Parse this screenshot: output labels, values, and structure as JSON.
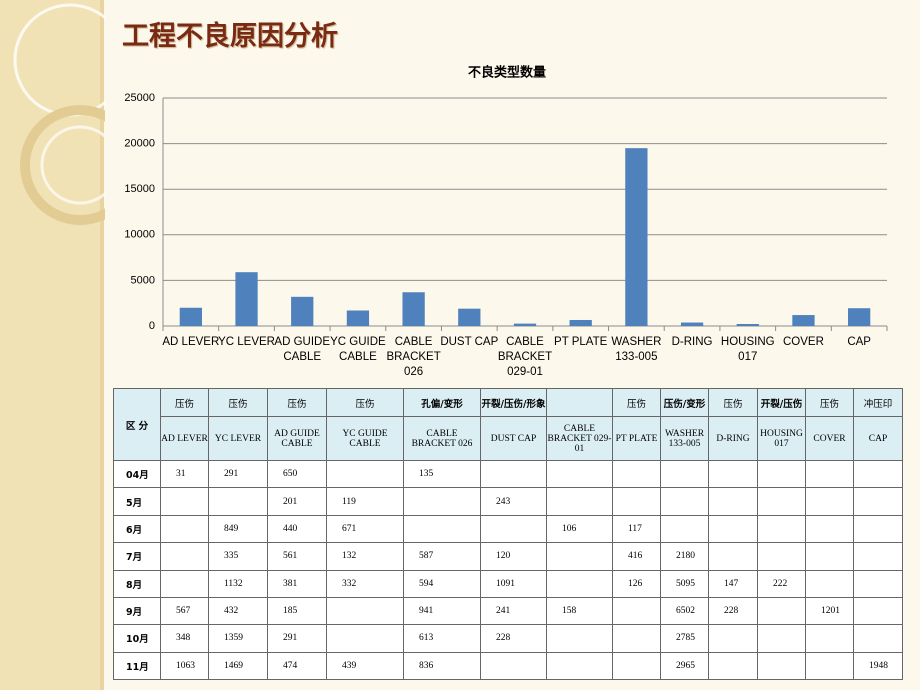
{
  "title": "工程不良原因分析",
  "chart_data": {
    "type": "bar",
    "title": "不良类型数量",
    "categories": [
      "AD LEVER",
      "YC LEVER",
      "AD GUIDE CABLE",
      "YC GUIDE CABLE",
      "CABLE BRACKET 026",
      "DUST CAP",
      "CABLE BRACKET 029-01",
      "PT PLATE",
      "WASHER 133-005",
      "D-RING",
      "HOUSING 017",
      "COVER",
      "CAP"
    ],
    "values": [
      2000,
      5900,
      3200,
      1700,
      3700,
      1900,
      260,
      660,
      19500,
      380,
      220,
      1200,
      1950
    ],
    "color": "#4f81bd",
    "ylim": [
      0,
      25000
    ],
    "yticks": [
      0,
      5000,
      10000,
      15000,
      20000,
      25000
    ],
    "grid": true
  },
  "table": {
    "corner": "区 分",
    "defects": [
      "压伤",
      "压伤",
      "压伤",
      "压伤",
      "孔偏/变形",
      "开裂/压伤/形象",
      null,
      "压伤",
      "压伤/变形",
      "压伤",
      "开裂/压伤",
      "压伤",
      "冲压印"
    ],
    "rows": [
      {
        "month": "04月",
        "values": [
          31,
          291,
          650,
          null,
          135,
          null,
          null,
          null,
          null,
          null,
          null,
          null,
          null
        ]
      },
      {
        "month": "5月",
        "values": [
          null,
          null,
          201,
          119,
          null,
          243,
          null,
          null,
          null,
          null,
          null,
          null,
          null
        ]
      },
      {
        "month": "6月",
        "values": [
          null,
          849,
          440,
          671,
          null,
          null,
          106,
          117,
          null,
          null,
          null,
          null,
          null
        ]
      },
      {
        "month": "7月",
        "values": [
          null,
          335,
          561,
          132,
          587,
          120,
          null,
          416,
          2180,
          null,
          null,
          null,
          null
        ]
      },
      {
        "month": "8月",
        "values": [
          null,
          1132,
          381,
          332,
          594,
          1091,
          null,
          126,
          5095,
          147,
          222,
          null,
          null
        ]
      },
      {
        "month": "9月",
        "values": [
          567,
          432,
          185,
          null,
          941,
          241,
          158,
          null,
          6502,
          228,
          null,
          1201,
          null
        ]
      },
      {
        "month": "10月",
        "values": [
          348,
          1359,
          291,
          null,
          613,
          228,
          null,
          null,
          2785,
          null,
          null,
          null,
          null
        ]
      },
      {
        "month": "11月",
        "values": [
          1063,
          1469,
          474,
          439,
          836,
          null,
          null,
          null,
          2965,
          null,
          null,
          null,
          1948
        ]
      }
    ]
  }
}
